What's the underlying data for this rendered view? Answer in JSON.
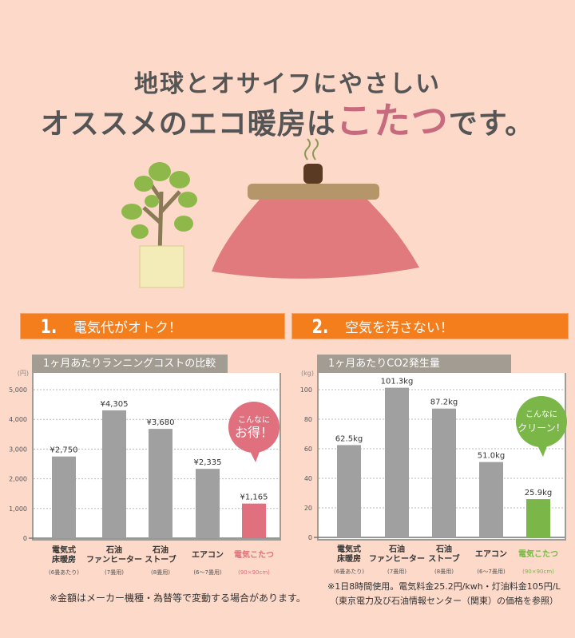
{
  "header": {
    "line1": "地球とオサイフにやさしい",
    "line2_pre": "オススメのエコ暖房は",
    "line2_highlight": "こたつ",
    "line2_post": "です。"
  },
  "sections": [
    {
      "number": "1.",
      "title": "電気代がオトク！"
    },
    {
      "number": "2.",
      "title": "空気を汚さない！"
    }
  ],
  "chart_data": [
    {
      "type": "bar",
      "title": "1ヶ月あたりランニングコストの比較",
      "unit": "(円)",
      "ylim": [
        0,
        5000
      ],
      "yticks": [
        0,
        1000,
        2000,
        3000,
        4000,
        5000
      ],
      "ytick_labels": [
        "0",
        "1,000",
        "2,000",
        "3,000",
        "4,000",
        "5,000"
      ],
      "grid": true,
      "categories": [
        {
          "name": "電気式\n床暖房",
          "sub": "(6畳あたり)"
        },
        {
          "name": "石油\nファンヒーター",
          "sub": "(7畳用)"
        },
        {
          "name": "石油\nストーブ",
          "sub": "(8畳用)"
        },
        {
          "name": "エアコン",
          "sub": "(6〜7畳用)"
        },
        {
          "name": "電気こたつ",
          "sub": "(90×90cm)"
        }
      ],
      "values": [
        2750,
        4305,
        3680,
        2335,
        1165
      ],
      "labels": [
        "¥2,750",
        "¥4,305",
        "¥3,680",
        "¥2,335",
        "¥1,165"
      ],
      "bar_color": "#a0a0a0",
      "highlight_color": "#e0707e",
      "callout": [
        "こんなに",
        "お得！"
      ],
      "note": [
        "※金額はメーカー機種・為替等で変動する場合があります。"
      ]
    },
    {
      "type": "bar",
      "title": "1ヶ月あたりCO2発生量",
      "unit": "(kg)",
      "ylim": [
        0,
        100
      ],
      "yticks": [
        0,
        20,
        40,
        60,
        80,
        100
      ],
      "ytick_labels": [
        "0",
        "20",
        "40",
        "60",
        "80",
        "100"
      ],
      "grid": true,
      "categories": [
        {
          "name": "電気式\n床暖房",
          "sub": "(6畳あたり)"
        },
        {
          "name": "石油\nファンヒーター",
          "sub": "(7畳用)"
        },
        {
          "name": "石油\nストーブ",
          "sub": "(8畳用)"
        },
        {
          "name": "エアコン",
          "sub": "(6〜7畳用)"
        },
        {
          "name": "電気こたつ",
          "sub": "(90×90cm)"
        }
      ],
      "values": [
        62.5,
        101.3,
        87.2,
        51.0,
        25.9
      ],
      "labels": [
        "62.5kg",
        "101.3kg",
        "87.2kg",
        "51.0kg",
        "25.9kg"
      ],
      "bar_color": "#a0a0a0",
      "highlight_color": "#7ab648",
      "callout": [
        "こんなに",
        "クリーン！"
      ],
      "note": [
        "※1日8時間使用。電気料金25.2円/kwh・灯油料金105円/L",
        "（東京電力及び石油情報センター（関東）の価格を参照）"
      ]
    }
  ]
}
